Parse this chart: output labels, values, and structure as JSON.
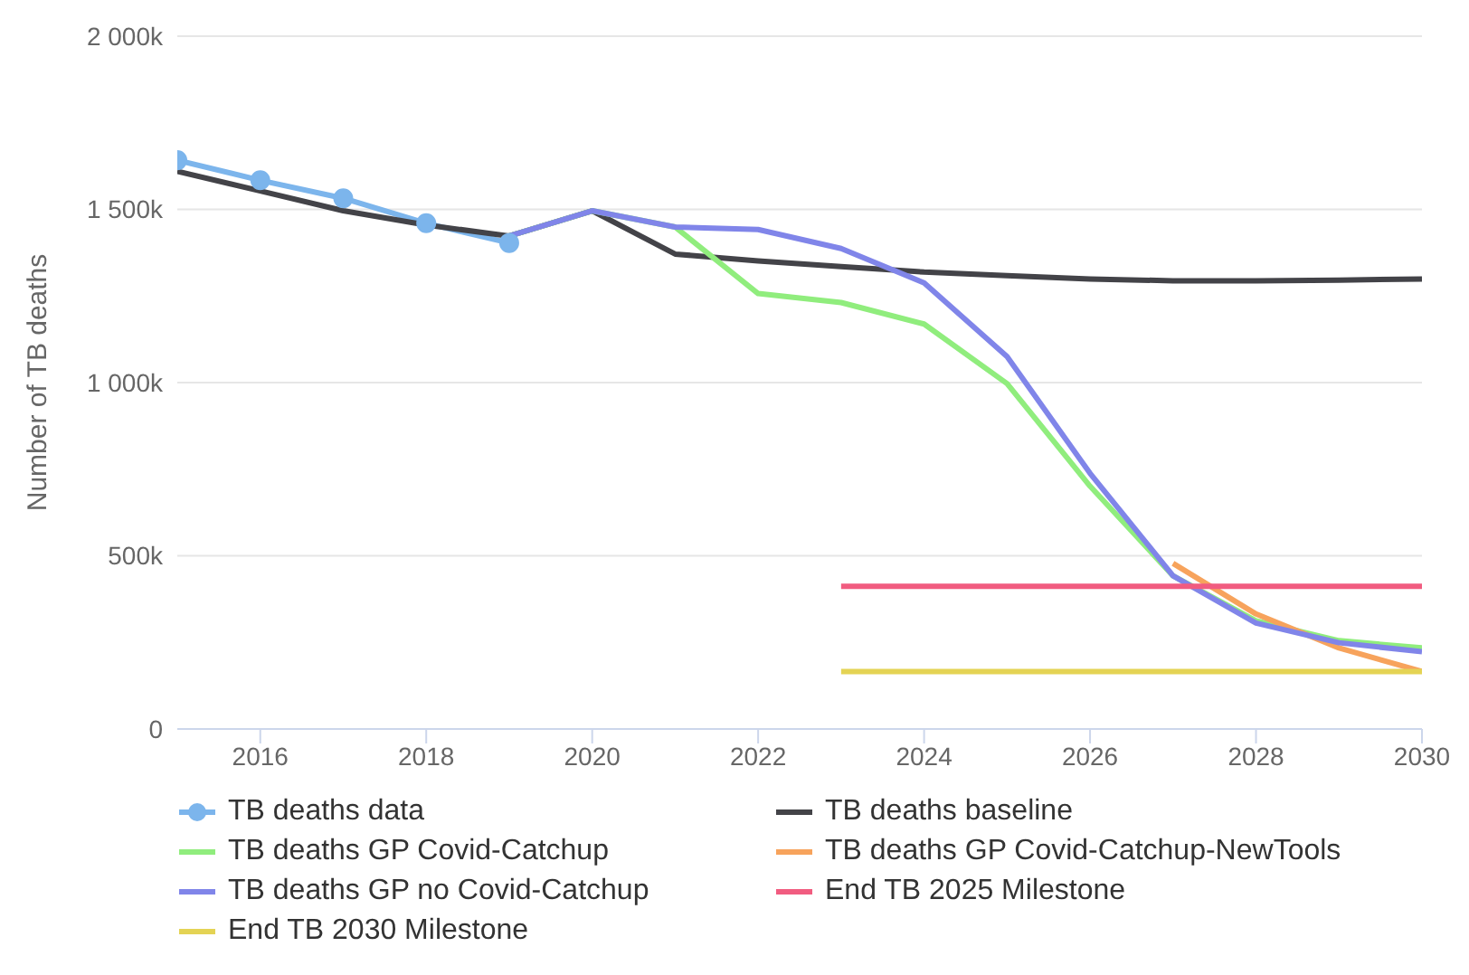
{
  "chart_data": {
    "type": "line",
    "ylabel": "Number of TB deaths",
    "xlim": [
      2015,
      2030
    ],
    "xticks": [
      2016,
      2018,
      2020,
      2022,
      2024,
      2026,
      2028,
      2030
    ],
    "ylim": [
      0,
      2000
    ],
    "yticks": [
      {
        "value": 0,
        "label": "0"
      },
      {
        "value": 500,
        "label": "500k"
      },
      {
        "value": 1000,
        "label": "1 000k"
      },
      {
        "value": 1500,
        "label": "1 500k"
      },
      {
        "value": 2000,
        "label": "2 000k"
      }
    ],
    "grid": "y",
    "legend": "bottom",
    "marker": "none",
    "line_style": "solid",
    "series": [
      {
        "name": "TB deaths data",
        "color": "#7cb5ec",
        "marker": "circle",
        "x": [
          2015,
          2016,
          2017,
          2018,
          2019
        ],
        "values": [
          1642,
          1584,
          1532,
          1460,
          1403
        ]
      },
      {
        "name": "TB deaths baseline",
        "color": "#434348",
        "x": [
          2015,
          2016,
          2017,
          2018,
          2019,
          2020,
          2021,
          2022,
          2023,
          2024,
          2025,
          2026,
          2027,
          2028,
          2029,
          2030
        ],
        "values": [
          1610,
          1553,
          1496,
          1455,
          1423,
          1496,
          1371,
          1351,
          1335,
          1319,
          1309,
          1299,
          1294,
          1294,
          1296,
          1299
        ]
      },
      {
        "name": "TB deaths GP Covid-Catchup",
        "color": "#90ed7d",
        "x": [
          2019,
          2020,
          2021,
          2022,
          2023,
          2024,
          2025,
          2026,
          2027,
          2028,
          2029,
          2030
        ],
        "values": [
          1423,
          1496,
          1449,
          1257,
          1231,
          1169,
          997,
          701,
          442,
          312,
          255,
          234
        ]
      },
      {
        "name": "TB deaths GP Covid-Catchup-NewTools",
        "color": "#f7a35c",
        "x": [
          2027,
          2028,
          2029,
          2030
        ],
        "values": [
          478,
          332,
          234,
          166
        ]
      },
      {
        "name": "TB deaths GP no Covid-Catchup",
        "color": "#8085e9",
        "x": [
          2019,
          2020,
          2021,
          2022,
          2023,
          2024,
          2025,
          2026,
          2027,
          2028,
          2029,
          2030
        ],
        "values": [
          1423,
          1496,
          1449,
          1442,
          1387,
          1288,
          1075,
          738,
          442,
          306,
          249,
          223
        ]
      },
      {
        "name": "End TB 2025 Milestone",
        "color": "#f15c80",
        "x": [
          2023,
          2030
        ],
        "values": [
          412,
          412
        ]
      },
      {
        "name": "End TB 2030 Milestone",
        "color": "#e4d354",
        "x": [
          2023,
          2030
        ],
        "values": [
          166,
          166
        ]
      }
    ]
  }
}
